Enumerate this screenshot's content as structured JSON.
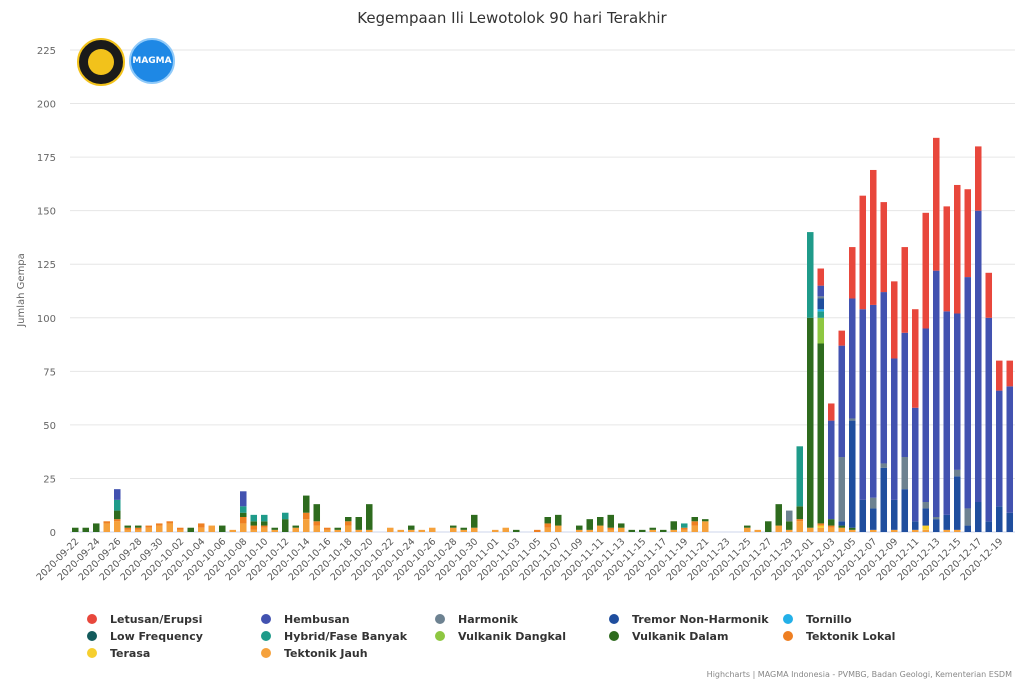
{
  "chart_data": {
    "type": "bar",
    "stacked": true,
    "title": "Kegempaan Ili Lewotolok 90 hari Terakhir",
    "ylabel": "Jumlah Gempa",
    "xlabel": "",
    "ylim": [
      0,
      225
    ],
    "yticks": [
      0,
      25,
      50,
      75,
      100,
      125,
      150,
      175,
      200,
      225
    ],
    "grid": true,
    "legend_position": "bottom",
    "xtick_labels": [
      "2020-09-22",
      "2020-09-24",
      "2020-09-26",
      "2020-09-28",
      "2020-09-30",
      "2020-10-02",
      "2020-10-04",
      "2020-10-06",
      "2020-10-08",
      "2020-10-10",
      "2020-10-12",
      "2020-10-14",
      "2020-10-16",
      "2020-10-18",
      "2020-10-20",
      "2020-10-22",
      "2020-10-24",
      "2020-10-26",
      "2020-10-28",
      "2020-10-30",
      "2020-11-01",
      "2020-11-03",
      "2020-11-05",
      "2020-11-07",
      "2020-11-09",
      "2020-11-11",
      "2020-11-13",
      "2020-11-15",
      "2020-11-17",
      "2020-11-19",
      "2020-11-21",
      "2020-11-23",
      "2020-11-25",
      "2020-11-27",
      "2020-11-29",
      "2020-12-01",
      "2020-12-03",
      "2020-12-05",
      "2020-12-07",
      "2020-12-09",
      "2020-12-11",
      "2020-12-13",
      "2020-12-15",
      "2020-12-17",
      "2020-12-19"
    ],
    "categories": [
      "2020-09-22",
      "2020-09-23",
      "2020-09-24",
      "2020-09-25",
      "2020-09-26",
      "2020-09-27",
      "2020-09-28",
      "2020-09-29",
      "2020-09-30",
      "2020-10-01",
      "2020-10-02",
      "2020-10-03",
      "2020-10-04",
      "2020-10-05",
      "2020-10-06",
      "2020-10-07",
      "2020-10-08",
      "2020-10-09",
      "2020-10-10",
      "2020-10-11",
      "2020-10-12",
      "2020-10-13",
      "2020-10-14",
      "2020-10-15",
      "2020-10-16",
      "2020-10-17",
      "2020-10-18",
      "2020-10-19",
      "2020-10-20",
      "2020-10-21",
      "2020-10-22",
      "2020-10-23",
      "2020-10-24",
      "2020-10-25",
      "2020-10-26",
      "2020-10-27",
      "2020-10-28",
      "2020-10-29",
      "2020-10-30",
      "2020-10-31",
      "2020-11-01",
      "2020-11-02",
      "2020-11-03",
      "2020-11-04",
      "2020-11-05",
      "2020-11-06",
      "2020-11-07",
      "2020-11-08",
      "2020-11-09",
      "2020-11-10",
      "2020-11-11",
      "2020-11-12",
      "2020-11-13",
      "2020-11-14",
      "2020-11-15",
      "2020-11-16",
      "2020-11-17",
      "2020-11-18",
      "2020-11-19",
      "2020-11-20",
      "2020-11-21",
      "2020-11-22",
      "2020-11-23",
      "2020-11-24",
      "2020-11-25",
      "2020-11-26",
      "2020-11-27",
      "2020-11-28",
      "2020-11-29",
      "2020-11-30",
      "2020-12-01",
      "2020-12-02",
      "2020-12-03",
      "2020-12-04",
      "2020-12-05",
      "2020-12-06",
      "2020-12-07",
      "2020-12-08",
      "2020-12-09",
      "2020-12-10",
      "2020-12-11",
      "2020-12-12",
      "2020-12-13",
      "2020-12-14",
      "2020-12-15",
      "2020-12-16",
      "2020-12-17",
      "2020-12-18",
      "2020-12-19",
      "2020-12-20"
    ],
    "series": [
      {
        "name": "Tektonik Jauh",
        "color": "#f5a13c",
        "values": [
          0,
          0,
          0,
          4,
          5,
          1,
          1,
          2,
          3,
          4,
          1,
          0,
          2,
          3,
          0,
          1,
          4,
          1,
          2,
          1,
          0,
          2,
          6,
          3,
          1,
          1,
          3,
          1,
          1,
          0,
          2,
          1,
          1,
          1,
          2,
          0,
          2,
          1,
          2,
          0,
          1,
          2,
          0,
          0,
          0,
          2,
          3,
          0,
          1,
          1,
          3,
          1,
          2,
          0,
          0,
          1,
          0,
          1,
          1,
          3,
          5,
          0,
          0,
          0,
          2,
          1,
          0,
          3,
          1,
          5,
          2,
          2,
          2,
          2,
          1,
          0,
          1,
          0,
          1,
          0,
          1,
          1,
          0,
          1,
          1,
          0,
          0,
          0,
          0,
          0
        ]
      },
      {
        "name": "Terasa",
        "color": "#f6cf2f",
        "values": [
          0,
          0,
          0,
          0,
          0,
          0,
          0,
          0,
          0,
          0,
          0,
          0,
          0,
          0,
          0,
          0,
          0,
          0,
          0,
          0,
          0,
          0,
          0,
          0,
          0,
          0,
          0,
          0,
          0,
          0,
          0,
          0,
          0,
          0,
          0,
          0,
          0,
          0,
          0,
          0,
          0,
          0,
          0,
          0,
          0,
          0,
          0,
          0,
          0,
          0,
          0,
          0,
          0,
          0,
          0,
          0,
          0,
          0,
          0,
          0,
          0,
          0,
          0,
          0,
          0,
          0,
          0,
          0,
          0,
          0,
          0,
          1,
          0,
          0,
          0,
          0,
          0,
          0,
          0,
          0,
          0,
          2,
          0,
          0,
          0,
          0,
          0,
          0,
          0,
          0
        ]
      },
      {
        "name": "Tektonik Lokal",
        "color": "#ee7f22",
        "values": [
          0,
          0,
          0,
          1,
          1,
          1,
          1,
          1,
          1,
          1,
          1,
          0,
          2,
          0,
          0,
          0,
          3,
          2,
          1,
          0,
          0,
          0,
          3,
          2,
          1,
          0,
          2,
          0,
          0,
          0,
          0,
          0,
          0,
          0,
          0,
          0,
          0,
          0,
          0,
          0,
          0,
          0,
          0,
          0,
          1,
          2,
          0,
          0,
          0,
          0,
          0,
          1,
          0,
          0,
          0,
          0,
          0,
          0,
          1,
          2,
          0,
          0,
          0,
          0,
          0,
          0,
          0,
          0,
          0,
          1,
          0,
          1,
          1,
          0,
          0,
          0,
          0,
          0,
          0,
          0,
          0,
          0,
          0,
          0,
          0,
          0,
          0,
          0,
          0,
          0
        ]
      },
      {
        "name": "Vulkanik Dalam",
        "color": "#2e6b1e",
        "values": [
          2,
          2,
          4,
          0,
          4,
          1,
          1,
          0,
          0,
          0,
          0,
          2,
          0,
          0,
          3,
          0,
          2,
          2,
          2,
          1,
          6,
          1,
          8,
          8,
          0,
          1,
          2,
          6,
          12,
          0,
          0,
          0,
          2,
          0,
          0,
          0,
          1,
          1,
          6,
          0,
          0,
          0,
          1,
          0,
          0,
          3,
          5,
          0,
          2,
          5,
          4,
          6,
          2,
          1,
          1,
          1,
          1,
          4,
          0,
          2,
          1,
          0,
          0,
          0,
          1,
          0,
          5,
          10,
          4,
          6,
          98,
          84,
          3,
          1,
          1,
          0,
          0,
          0,
          0,
          0,
          0,
          0,
          0,
          0,
          0,
          0,
          0,
          0,
          0,
          0
        ]
      },
      {
        "name": "Vulkanik Dangkal",
        "color": "#8ec741",
        "values": [
          0,
          0,
          0,
          0,
          0,
          0,
          0,
          0,
          0,
          0,
          0,
          0,
          0,
          0,
          0,
          0,
          0,
          0,
          0,
          0,
          0,
          0,
          0,
          0,
          0,
          0,
          0,
          0,
          0,
          0,
          0,
          0,
          0,
          0,
          0,
          0,
          0,
          0,
          0,
          0,
          0,
          0,
          0,
          0,
          0,
          0,
          0,
          0,
          0,
          0,
          0,
          0,
          0,
          0,
          0,
          0,
          0,
          0,
          0,
          0,
          0,
          0,
          0,
          0,
          0,
          0,
          0,
          0,
          0,
          0,
          0,
          12,
          0,
          0,
          0,
          0,
          0,
          0,
          0,
          0,
          0,
          0,
          0,
          0,
          0,
          0,
          0,
          0,
          0,
          0
        ]
      },
      {
        "name": "Hybrid/Fase Banyak",
        "color": "#1f9b8a",
        "values": [
          0,
          0,
          0,
          0,
          5,
          0,
          0,
          0,
          0,
          0,
          0,
          0,
          0,
          0,
          0,
          0,
          3,
          3,
          3,
          0,
          3,
          0,
          0,
          0,
          0,
          0,
          0,
          0,
          0,
          0,
          0,
          0,
          0,
          0,
          0,
          0,
          0,
          0,
          0,
          0,
          0,
          0,
          0,
          0,
          0,
          0,
          0,
          0,
          0,
          0,
          0,
          0,
          0,
          0,
          0,
          0,
          0,
          0,
          2,
          0,
          0,
          0,
          0,
          0,
          0,
          0,
          0,
          0,
          0,
          28,
          40,
          3,
          0,
          0,
          0,
          0,
          0,
          0,
          0,
          0,
          0,
          0,
          0,
          0,
          0,
          0,
          0,
          0,
          0,
          0
        ]
      },
      {
        "name": "Low Frequency",
        "color": "#135b5c",
        "values": [
          0,
          0,
          0,
          0,
          0,
          0,
          0,
          0,
          0,
          0,
          0,
          0,
          0,
          0,
          0,
          0,
          0,
          0,
          0,
          0,
          0,
          0,
          0,
          0,
          0,
          0,
          0,
          0,
          0,
          0,
          0,
          0,
          0,
          0,
          0,
          0,
          0,
          0,
          0,
          0,
          0,
          0,
          0,
          0,
          0,
          0,
          0,
          0,
          0,
          0,
          0,
          0,
          0,
          0,
          0,
          0,
          0,
          0,
          0,
          0,
          0,
          0,
          0,
          0,
          0,
          0,
          0,
          0,
          0,
          0,
          0,
          0,
          0,
          0,
          0,
          0,
          0,
          0,
          0,
          0,
          0,
          0,
          0,
          0,
          0,
          0,
          0,
          0,
          0,
          0
        ]
      },
      {
        "name": "Tornillo",
        "color": "#23b0e8",
        "values": [
          0,
          0,
          0,
          0,
          0,
          0,
          0,
          0,
          0,
          0,
          0,
          0,
          0,
          0,
          0,
          0,
          0,
          0,
          0,
          0,
          0,
          0,
          0,
          0,
          0,
          0,
          0,
          0,
          0,
          0,
          0,
          0,
          0,
          0,
          0,
          0,
          0,
          0,
          0,
          0,
          0,
          0,
          0,
          0,
          0,
          0,
          0,
          0,
          0,
          0,
          0,
          0,
          0,
          0,
          0,
          0,
          0,
          0,
          0,
          0,
          0,
          0,
          0,
          0,
          0,
          0,
          0,
          0,
          0,
          0,
          0,
          1,
          0,
          0,
          0,
          0,
          0,
          0,
          0,
          0,
          0,
          0,
          0,
          0,
          0,
          0,
          0,
          0,
          0,
          0
        ]
      },
      {
        "name": "Tremor Non-Harmonik",
        "color": "#1f4e9e",
        "values": [
          0,
          0,
          0,
          0,
          0,
          0,
          0,
          0,
          0,
          0,
          0,
          0,
          0,
          0,
          0,
          0,
          0,
          0,
          0,
          0,
          0,
          0,
          0,
          0,
          0,
          0,
          0,
          0,
          0,
          0,
          0,
          0,
          0,
          0,
          0,
          0,
          0,
          0,
          0,
          0,
          0,
          0,
          0,
          0,
          0,
          0,
          0,
          0,
          0,
          0,
          0,
          0,
          0,
          0,
          0,
          0,
          0,
          0,
          0,
          0,
          0,
          0,
          0,
          0,
          0,
          0,
          0,
          0,
          0,
          0,
          0,
          5,
          0,
          2,
          50,
          15,
          10,
          30,
          14,
          20,
          4,
          8,
          6,
          7,
          25,
          3,
          14,
          5,
          12,
          9
        ]
      },
      {
        "name": "Harmonik",
        "color": "#6d8291",
        "values": [
          0,
          0,
          0,
          0,
          0,
          0,
          0,
          0,
          0,
          0,
          0,
          0,
          0,
          0,
          0,
          0,
          0,
          0,
          0,
          0,
          0,
          0,
          0,
          0,
          0,
          0,
          0,
          0,
          0,
          0,
          0,
          0,
          0,
          0,
          0,
          0,
          0,
          0,
          0,
          0,
          0,
          0,
          0,
          0,
          0,
          0,
          0,
          0,
          0,
          0,
          0,
          0,
          0,
          0,
          0,
          0,
          0,
          0,
          0,
          0,
          0,
          0,
          0,
          0,
          0,
          0,
          0,
          0,
          5,
          0,
          0,
          1,
          0,
          30,
          1,
          0,
          5,
          2,
          0,
          15,
          0,
          3,
          1,
          0,
          3,
          8,
          0,
          0,
          0,
          0
        ]
      },
      {
        "name": "Hembusan",
        "color": "#4252b0",
        "values": [
          0,
          0,
          0,
          0,
          5,
          0,
          0,
          0,
          0,
          0,
          0,
          0,
          0,
          0,
          0,
          0,
          7,
          0,
          0,
          0,
          0,
          0,
          0,
          0,
          0,
          0,
          0,
          0,
          0,
          0,
          0,
          0,
          0,
          0,
          0,
          0,
          0,
          0,
          0,
          0,
          0,
          0,
          0,
          0,
          0,
          0,
          0,
          0,
          0,
          0,
          0,
          0,
          0,
          0,
          0,
          0,
          0,
          0,
          0,
          0,
          0,
          0,
          0,
          0,
          0,
          0,
          0,
          0,
          0,
          0,
          0,
          5,
          46,
          52,
          56,
          89,
          90,
          80,
          66,
          58,
          53,
          81,
          115,
          95,
          73,
          108,
          136,
          95,
          54,
          59
        ]
      },
      {
        "name": "Letusan/Erupsi",
        "color": "#e8473c",
        "values": [
          0,
          0,
          0,
          0,
          0,
          0,
          0,
          0,
          0,
          0,
          0,
          0,
          0,
          0,
          0,
          0,
          0,
          0,
          0,
          0,
          0,
          0,
          0,
          0,
          0,
          0,
          0,
          0,
          0,
          0,
          0,
          0,
          0,
          0,
          0,
          0,
          0,
          0,
          0,
          0,
          0,
          0,
          0,
          0,
          0,
          0,
          0,
          0,
          0,
          0,
          0,
          0,
          0,
          0,
          0,
          0,
          0,
          0,
          0,
          0,
          0,
          0,
          0,
          0,
          0,
          0,
          0,
          0,
          0,
          0,
          0,
          8,
          8,
          7,
          24,
          53,
          63,
          42,
          36,
          40,
          46,
          54,
          62,
          49,
          60,
          41,
          30,
          21,
          14,
          12
        ]
      }
    ],
    "legend": [
      {
        "name": "Letusan/Erupsi",
        "color": "#e8473c"
      },
      {
        "name": "Hembusan",
        "color": "#4252b0"
      },
      {
        "name": "Harmonik",
        "color": "#6d8291"
      },
      {
        "name": "Tremor Non-Harmonik",
        "color": "#1f4e9e"
      },
      {
        "name": "Tornillo",
        "color": "#23b0e8"
      },
      {
        "name": "Low Frequency",
        "color": "#135b5c"
      },
      {
        "name": "Hybrid/Fase Banyak",
        "color": "#1f9b8a"
      },
      {
        "name": "Vulkanik Dangkal",
        "color": "#8ec741"
      },
      {
        "name": "Vulkanik Dalam",
        "color": "#2e6b1e"
      },
      {
        "name": "Tektonik Lokal",
        "color": "#ee7f22"
      },
      {
        "name": "Terasa",
        "color": "#f6cf2f"
      },
      {
        "name": "Tektonik Jauh",
        "color": "#f5a13c"
      }
    ]
  },
  "logos": {
    "esdm": "esdm-logo",
    "magma": "MAGMA"
  },
  "credits": "Highcharts | MAGMA Indonesia - PVMBG, Badan Geologi, Kementerian ESDM"
}
